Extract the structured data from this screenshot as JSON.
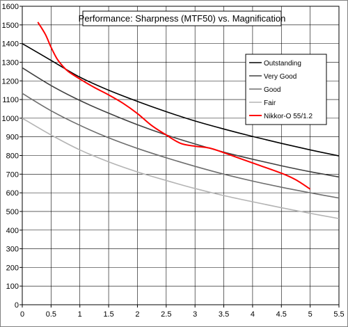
{
  "chart_data": {
    "type": "line",
    "title": "Performance: Sharpness (MTF50) vs. Magnification",
    "xlabel": "",
    "ylabel": "",
    "xlim": [
      0,
      5.5
    ],
    "ylim": [
      0,
      1600
    ],
    "grid": true,
    "legend_position": "top-right",
    "x_ticks": [
      "0",
      "0.5",
      "1",
      "1.5",
      "2",
      "2.5",
      "3",
      "3.5",
      "4",
      "4.5",
      "5",
      "5.5"
    ],
    "y_ticks": [
      "0",
      "100",
      "200",
      "300",
      "400",
      "500",
      "600",
      "700",
      "800",
      "900",
      "1000",
      "1100",
      "1200",
      "1300",
      "1400",
      "1500",
      "1600"
    ],
    "series": [
      {
        "name": "Outstanding",
        "color": "#000000",
        "points": [
          [
            0,
            1400
          ],
          [
            0.5,
            1310
          ],
          [
            1,
            1220
          ],
          [
            1.5,
            1150
          ],
          [
            2,
            1090
          ],
          [
            2.5,
            1035
          ],
          [
            3,
            985
          ],
          [
            3.5,
            942
          ],
          [
            4,
            902
          ],
          [
            4.5,
            865
          ],
          [
            5,
            830
          ],
          [
            5.5,
            798
          ]
        ]
      },
      {
        "name": "Very Good",
        "color": "#404040",
        "points": [
          [
            0,
            1270
          ],
          [
            0.5,
            1175
          ],
          [
            1,
            1095
          ],
          [
            1.5,
            1027
          ],
          [
            2,
            965
          ],
          [
            2.5,
            910
          ],
          [
            3,
            862
          ],
          [
            3.5,
            818
          ],
          [
            4,
            780
          ],
          [
            4.5,
            745
          ],
          [
            5,
            713
          ],
          [
            5.5,
            685
          ]
        ]
      },
      {
        "name": "Good",
        "color": "#6e6e6e",
        "points": [
          [
            0,
            1133
          ],
          [
            0.5,
            1040
          ],
          [
            1,
            962
          ],
          [
            1.5,
            895
          ],
          [
            2,
            838
          ],
          [
            2.5,
            788
          ],
          [
            3,
            742
          ],
          [
            3.5,
            700
          ],
          [
            4,
            663
          ],
          [
            4.5,
            630
          ],
          [
            5,
            600
          ],
          [
            5.5,
            572
          ]
        ]
      },
      {
        "name": "Fair",
        "color": "#b4b4b4",
        "points": [
          [
            0,
            1000
          ],
          [
            0.5,
            910
          ],
          [
            1,
            830
          ],
          [
            1.5,
            766
          ],
          [
            2,
            712
          ],
          [
            2.5,
            666
          ],
          [
            3,
            623
          ],
          [
            3.5,
            585
          ],
          [
            4,
            552
          ],
          [
            4.5,
            520
          ],
          [
            5,
            490
          ],
          [
            5.5,
            462
          ]
        ]
      },
      {
        "name": "Nikkor-O 55/1.2",
        "color": "#ff0000",
        "points": [
          [
            0.27,
            1515
          ],
          [
            0.4,
            1450
          ],
          [
            0.5,
            1380
          ],
          [
            0.6,
            1320
          ],
          [
            0.7,
            1280
          ],
          [
            0.8,
            1250
          ],
          [
            1,
            1210
          ],
          [
            1.25,
            1165
          ],
          [
            1.5,
            1125
          ],
          [
            1.75,
            1080
          ],
          [
            2,
            1025
          ],
          [
            2.25,
            960
          ],
          [
            2.5,
            910
          ],
          [
            2.75,
            865
          ],
          [
            3,
            850
          ],
          [
            3.25,
            840
          ],
          [
            3.5,
            815
          ],
          [
            4,
            760
          ],
          [
            4.5,
            705
          ],
          [
            4.75,
            670
          ],
          [
            5,
            620
          ]
        ]
      }
    ]
  }
}
